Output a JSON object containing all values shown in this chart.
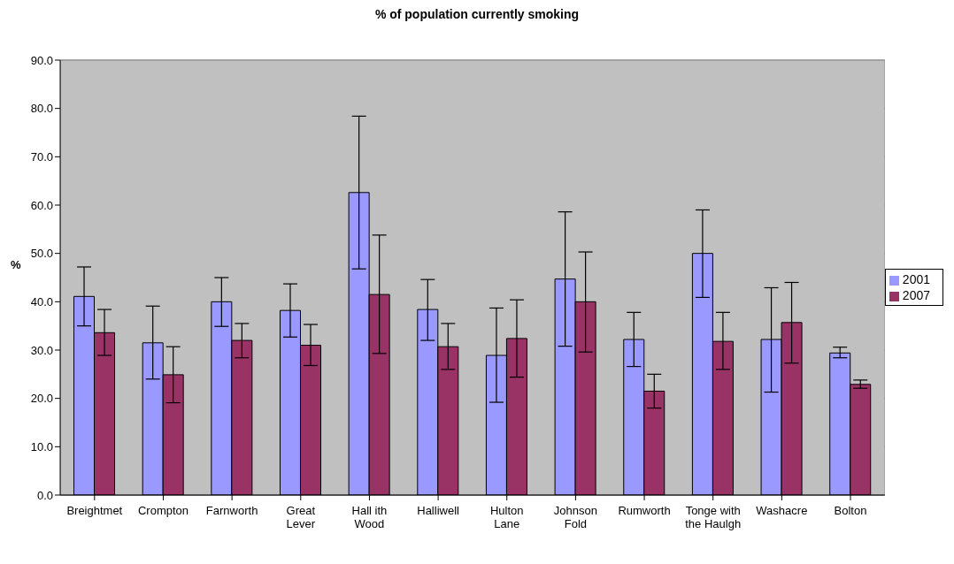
{
  "chart_data": {
    "type": "bar",
    "title": "% of population currently smoking",
    "ylabel": "%",
    "categories": [
      "Breightmet",
      "Crompton",
      "Farnworth",
      "Great Lever",
      "Hall ith Wood",
      "Halliwell",
      "Hulton Lane",
      "Johnson Fold",
      "Rumworth",
      "Tonge with the Haulgh",
      "Washacre",
      "Bolton"
    ],
    "series": [
      {
        "name": "2001",
        "color": "#9999ff",
        "values": [
          41.1,
          31.5,
          40.0,
          38.2,
          62.6,
          38.4,
          28.9,
          44.7,
          32.2,
          50.0,
          32.2,
          29.4
        ],
        "errors": [
          [
            35.0,
            47.2
          ],
          [
            24.0,
            39.1
          ],
          [
            34.9,
            45.0
          ],
          [
            32.7,
            43.7
          ],
          [
            46.8,
            78.4
          ],
          [
            32.0,
            44.6
          ],
          [
            19.2,
            38.7
          ],
          [
            30.8,
            58.6
          ],
          [
            26.6,
            37.8
          ],
          [
            40.9,
            59.0
          ],
          [
            21.3,
            42.9
          ],
          [
            28.4,
            30.6
          ]
        ]
      },
      {
        "name": "2007",
        "color": "#993366",
        "values": [
          33.6,
          24.9,
          32.0,
          31.0,
          41.5,
          30.7,
          32.4,
          40.0,
          21.5,
          31.8,
          35.7,
          22.9
        ],
        "errors": [
          [
            28.9,
            38.4
          ],
          [
            19.1,
            30.7
          ],
          [
            28.4,
            35.5
          ],
          [
            26.8,
            35.3
          ],
          [
            29.3,
            53.8
          ],
          [
            26.0,
            35.5
          ],
          [
            24.4,
            40.4
          ],
          [
            29.6,
            50.3
          ],
          [
            18.0,
            25.0
          ],
          [
            26.0,
            37.8
          ],
          [
            27.3,
            44.0
          ],
          [
            22.1,
            23.8
          ]
        ]
      }
    ],
    "ylim": [
      0,
      90
    ],
    "yticks": [
      {
        "value": 0,
        "label": "0.0"
      },
      {
        "value": 10,
        "label": "10.0"
      },
      {
        "value": 20,
        "label": "20.0"
      },
      {
        "value": 30,
        "label": "30.0"
      },
      {
        "value": 40,
        "label": "40.0"
      },
      {
        "value": 50,
        "label": "50.0"
      },
      {
        "value": 60,
        "label": "60.0"
      },
      {
        "value": 70,
        "label": "70.0"
      },
      {
        "value": 80,
        "label": "80.0"
      },
      {
        "value": 90,
        "label": "90.0"
      }
    ],
    "grid": "y",
    "legend": "right"
  }
}
